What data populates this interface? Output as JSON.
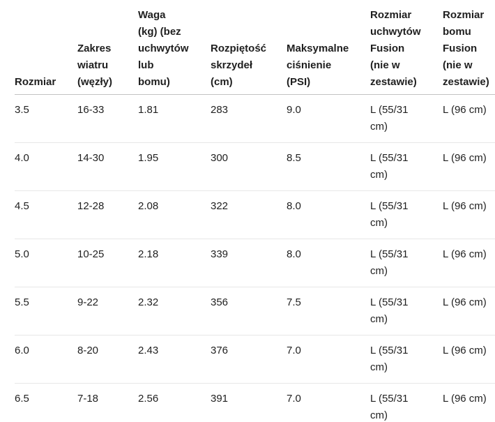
{
  "table": {
    "columns": [
      {
        "key": "rozmiar",
        "label_lines": [
          "Rozmiar"
        ]
      },
      {
        "key": "zakres-wiatru",
        "label_lines": [
          "Zakres",
          "wiatru",
          "(węzły)"
        ]
      },
      {
        "key": "waga",
        "label_lines": [
          "Waga",
          "(kg) (bez",
          "uchwytów",
          "lub",
          "bomu)"
        ]
      },
      {
        "key": "rozpietosc",
        "label_lines": [
          "Rozpiętość",
          "skrzydeł",
          "(cm)"
        ]
      },
      {
        "key": "maks-cisnienie",
        "label_lines": [
          "Maksymalne",
          "ciśnienie",
          "(PSI)"
        ]
      },
      {
        "key": "rozmiar-uchwytow",
        "label_lines": [
          "Rozmiar",
          "uchwytów",
          "Fusion",
          "(nie w",
          "zestawie)"
        ]
      },
      {
        "key": "rozmiar-bomu",
        "label_lines": [
          "Rozmiar",
          "bomu",
          "Fusion",
          "(nie w",
          "zestawie)"
        ]
      }
    ],
    "rows": [
      {
        "cells": [
          [
            "3.5"
          ],
          [
            "16-33"
          ],
          [
            "1.81"
          ],
          [
            "283"
          ],
          [
            "9.0"
          ],
          [
            "L (55/31",
            "cm)"
          ],
          [
            "L (96 cm)"
          ]
        ]
      },
      {
        "cells": [
          [
            "4.0"
          ],
          [
            "14-30"
          ],
          [
            "1.95"
          ],
          [
            "300"
          ],
          [
            "8.5"
          ],
          [
            "L (55/31",
            "cm)"
          ],
          [
            "L (96 cm)"
          ]
        ]
      },
      {
        "cells": [
          [
            "4.5"
          ],
          [
            "12-28"
          ],
          [
            "2.08"
          ],
          [
            "322"
          ],
          [
            "8.0"
          ],
          [
            "L (55/31",
            "cm)"
          ],
          [
            "L (96 cm)"
          ]
        ]
      },
      {
        "cells": [
          [
            "5.0"
          ],
          [
            "10-25"
          ],
          [
            "2.18"
          ],
          [
            "339"
          ],
          [
            "8.0"
          ],
          [
            "L (55/31",
            "cm)"
          ],
          [
            "L (96 cm)"
          ]
        ]
      },
      {
        "cells": [
          [
            "5.5"
          ],
          [
            "9-22"
          ],
          [
            "2.32"
          ],
          [
            "356"
          ],
          [
            "7.5"
          ],
          [
            "L (55/31",
            "cm)"
          ],
          [
            "L (96 cm)"
          ]
        ]
      },
      {
        "cells": [
          [
            "6.0"
          ],
          [
            "8-20"
          ],
          [
            "2.43"
          ],
          [
            "376"
          ],
          [
            "7.0"
          ],
          [
            "L (55/31",
            "cm)"
          ],
          [
            "L (96 cm)"
          ]
        ]
      },
      {
        "cells": [
          [
            "6.5"
          ],
          [
            "7-18"
          ],
          [
            "2.56"
          ],
          [
            "391"
          ],
          [
            "7.0"
          ],
          [
            "L (55/31",
            "cm)"
          ],
          [
            "L (96 cm)"
          ]
        ]
      }
    ]
  },
  "colors": {
    "text": "#1f1f1f",
    "header_border": "#c3c3c3",
    "row_border": "#e7e7e7",
    "background": "#ffffff"
  }
}
